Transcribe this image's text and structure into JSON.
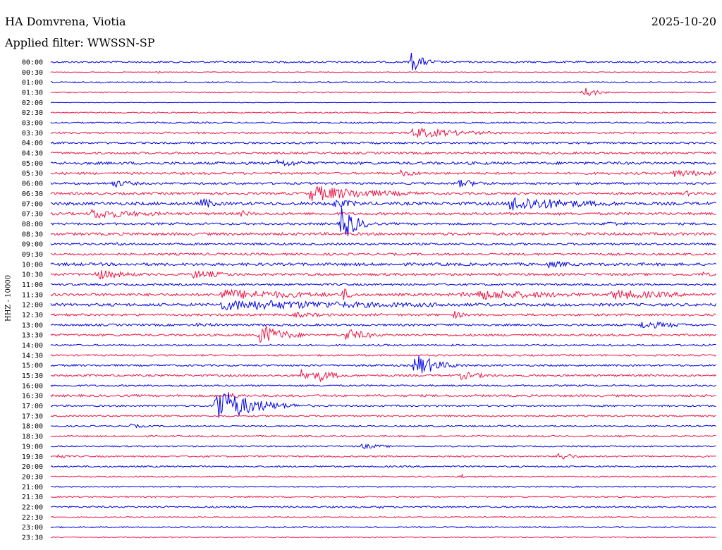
{
  "header": {
    "station": "HA Domvrena, Viotia",
    "date": "2025-10-20",
    "filter_label": "Applied filter: WWSSN-SP"
  },
  "chart_data": {
    "type": "line",
    "title": "HA Domvrena, Viotia",
    "subtitle": "Applied filter: WWSSN-SP",
    "ylabel": "HHZ - 10000",
    "xlabel": "",
    "colors": {
      "blue": "#0000e6",
      "red": "#f01446"
    },
    "row_labels": [
      "00:00",
      "00:30",
      "01:00",
      "01:30",
      "02:00",
      "02:30",
      "03:00",
      "03:30",
      "04:00",
      "04:30",
      "05:00",
      "05:30",
      "06:00",
      "06:30",
      "07:00",
      "07:30",
      "08:00",
      "08:30",
      "09:00",
      "09:30",
      "10:00",
      "10:30",
      "11:00",
      "11:30",
      "12:00",
      "12:30",
      "13:00",
      "13:30",
      "14:00",
      "14:30",
      "15:00",
      "15:30",
      "16:00",
      "16:30",
      "17:00",
      "17:30",
      "18:00",
      "18:30",
      "19:00",
      "19:30",
      "20:00",
      "20:30",
      "21:00",
      "21:30",
      "22:00",
      "22:30",
      "23:00",
      "23:30"
    ],
    "row_minutes": 30,
    "noise_levels": [
      1.2,
      0.5,
      1.0,
      0.8,
      0.4,
      0.9,
      1.1,
      1.3,
      1.4,
      1.5,
      1.9,
      1.6,
      1.5,
      1.7,
      2.2,
      1.8,
      1.6,
      1.9,
      1.5,
      1.6,
      2.0,
      1.7,
      1.4,
      1.9,
      2.0,
      1.6,
      1.5,
      1.5,
      1.3,
      1.2,
      1.3,
      1.4,
      1.2,
      1.6,
      1.3,
      1.1,
      1.0,
      1.2,
      1.0,
      1.1,
      1.1,
      0.9,
      0.9,
      1.0,
      1.2,
      0.7,
      1.0,
      0.8
    ],
    "events": [
      {
        "row": 0,
        "minute": 16.2,
        "amplitude": 16,
        "duration_min": 0.6
      },
      {
        "row": 1,
        "minute": 4.8,
        "amplitude": 3,
        "duration_min": 0.2
      },
      {
        "row": 3,
        "minute": 24.0,
        "amplitude": 9,
        "duration_min": 0.6
      },
      {
        "row": 7,
        "minute": 16.3,
        "amplitude": 8,
        "duration_min": 2.5
      },
      {
        "row": 10,
        "minute": 10.2,
        "amplitude": 6,
        "duration_min": 1.5
      },
      {
        "row": 11,
        "minute": 15.7,
        "amplitude": 5,
        "duration_min": 1.2
      },
      {
        "row": 11,
        "minute": 28.0,
        "amplitude": 6,
        "duration_min": 2.0
      },
      {
        "row": 12,
        "minute": 2.8,
        "amplitude": 6,
        "duration_min": 1.0
      },
      {
        "row": 12,
        "minute": 18.4,
        "amplitude": 6,
        "duration_min": 1.2
      },
      {
        "row": 13,
        "minute": 11.7,
        "amplitude": 12,
        "duration_min": 3.0
      },
      {
        "row": 13,
        "minute": 28.5,
        "amplitude": 5,
        "duration_min": 0.6
      },
      {
        "row": 14,
        "minute": 6.8,
        "amplitude": 10,
        "duration_min": 0.6
      },
      {
        "row": 14,
        "minute": 12.7,
        "amplitude": 7,
        "duration_min": 1.5
      },
      {
        "row": 14,
        "minute": 20.7,
        "amplitude": 12,
        "duration_min": 3.2
      },
      {
        "row": 15,
        "minute": 1.8,
        "amplitude": 8,
        "duration_min": 2.5
      },
      {
        "row": 15,
        "minute": 8.6,
        "amplitude": 5,
        "duration_min": 0.6
      },
      {
        "row": 16,
        "minute": 13.1,
        "amplitude": 30,
        "duration_min": 0.6
      },
      {
        "row": 16,
        "minute": 25.0,
        "amplitude": 4,
        "duration_min": 1.5
      },
      {
        "row": 18,
        "minute": 3.0,
        "amplitude": 3,
        "duration_min": 0.8
      },
      {
        "row": 20,
        "minute": 22.4,
        "amplitude": 5,
        "duration_min": 1.5
      },
      {
        "row": 21,
        "minute": 2.0,
        "amplitude": 8,
        "duration_min": 1.5
      },
      {
        "row": 21,
        "minute": 6.4,
        "amplitude": 6,
        "duration_min": 2.0
      },
      {
        "row": 21,
        "minute": 29.3,
        "amplitude": 4,
        "duration_min": 0.8
      },
      {
        "row": 23,
        "minute": 7.7,
        "amplitude": 8,
        "duration_min": 4.5
      },
      {
        "row": 23,
        "minute": 13.2,
        "amplitude": 10,
        "duration_min": 0.4
      },
      {
        "row": 23,
        "minute": 18.5,
        "amplitude": 4,
        "duration_min": 1.0
      },
      {
        "row": 23,
        "minute": 19.2,
        "amplitude": 8,
        "duration_min": 4.0
      },
      {
        "row": 23,
        "minute": 25.3,
        "amplitude": 8,
        "duration_min": 3.0
      },
      {
        "row": 24,
        "minute": 7.7,
        "amplitude": 8,
        "duration_min": 9.0
      },
      {
        "row": 24,
        "minute": 17.6,
        "amplitude": 4,
        "duration_min": 0.8
      },
      {
        "row": 25,
        "minute": 11.0,
        "amplitude": 4,
        "duration_min": 2.0
      },
      {
        "row": 25,
        "minute": 18.2,
        "amplitude": 6,
        "duration_min": 0.5
      },
      {
        "row": 26,
        "minute": 6.5,
        "amplitude": 3,
        "duration_min": 2.0
      },
      {
        "row": 26,
        "minute": 26.6,
        "amplitude": 6,
        "duration_min": 2.0
      },
      {
        "row": 27,
        "minute": 9.4,
        "amplitude": 18,
        "duration_min": 1.0
      },
      {
        "row": 27,
        "minute": 13.3,
        "amplitude": 10,
        "duration_min": 1.0
      },
      {
        "row": 30,
        "minute": 14.2,
        "amplitude": 2,
        "duration_min": 1.5
      },
      {
        "row": 30,
        "minute": 16.4,
        "amplitude": 18,
        "duration_min": 1.0
      },
      {
        "row": 31,
        "minute": 11.3,
        "amplitude": 10,
        "duration_min": 0.8
      },
      {
        "row": 31,
        "minute": 12.1,
        "amplitude": 9,
        "duration_min": 0.8
      },
      {
        "row": 31,
        "minute": 18.5,
        "amplitude": 6,
        "duration_min": 1.2
      },
      {
        "row": 33,
        "minute": 8.0,
        "amplitude": 4,
        "duration_min": 1.2
      },
      {
        "row": 34,
        "minute": 7.4,
        "amplitude": 30,
        "duration_min": 1.5
      },
      {
        "row": 36,
        "minute": 3.6,
        "amplitude": 3,
        "duration_min": 1.0
      },
      {
        "row": 38,
        "minute": 14.0,
        "amplitude": 4,
        "duration_min": 1.2
      },
      {
        "row": 39,
        "minute": 0.3,
        "amplitude": 5,
        "duration_min": 0.4
      },
      {
        "row": 39,
        "minute": 22.9,
        "amplitude": 8,
        "duration_min": 0.6
      },
      {
        "row": 41,
        "minute": 18.5,
        "amplitude": 4,
        "duration_min": 0.2
      },
      {
        "row": 44,
        "minute": 14.8,
        "amplitude": 3,
        "duration_min": 0.3
      }
    ]
  }
}
